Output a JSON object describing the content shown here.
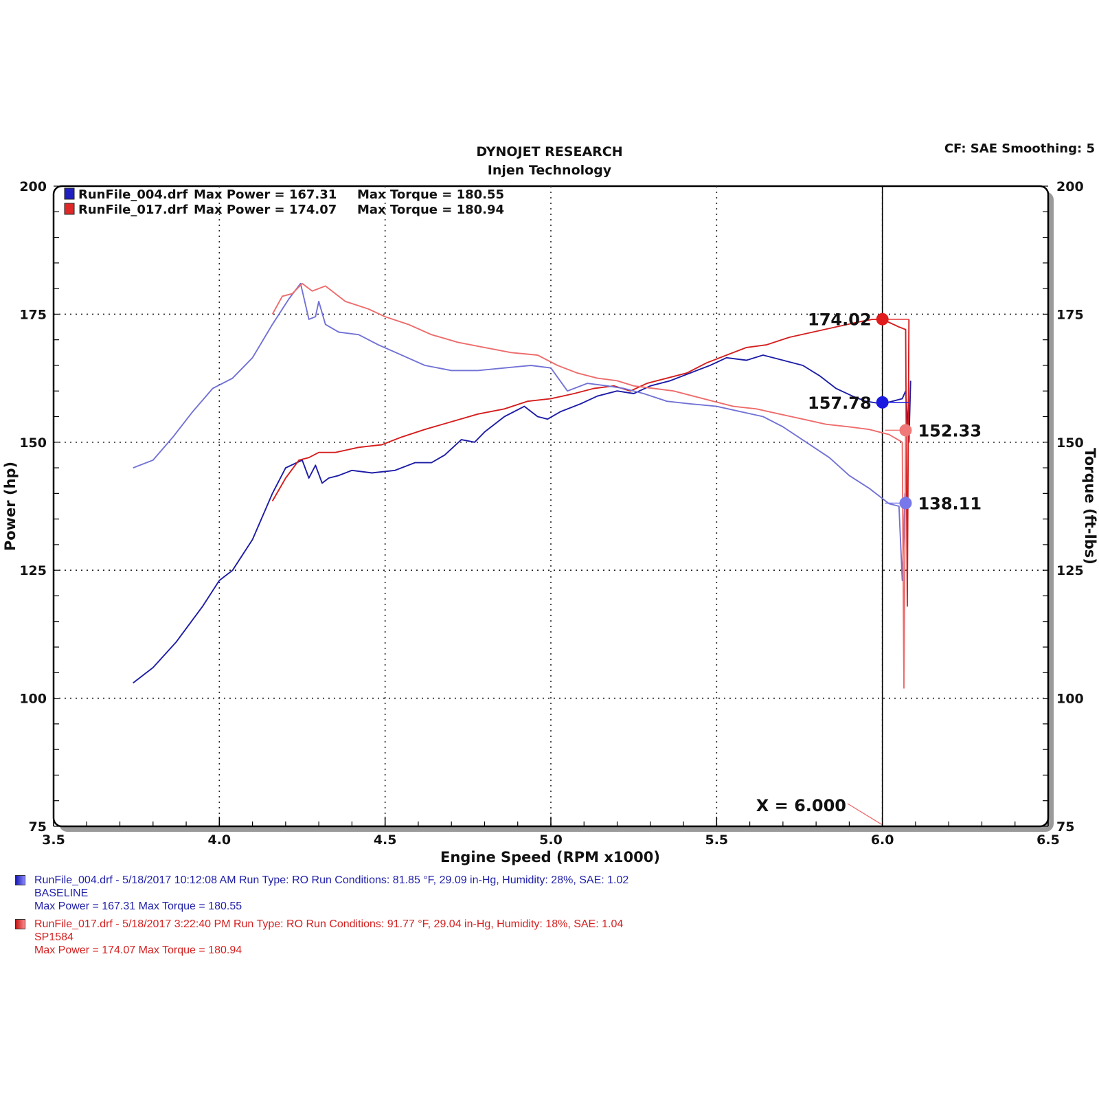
{
  "header": {
    "title": "DYNOJET RESEARCH",
    "subtitle": "Injen Technology",
    "settings": "CF: SAE  Smoothing: 5"
  },
  "legend": [
    {
      "file": "RunFile_004.drf",
      "max_power_label": "Max Power = 167.31",
      "max_torque_label": "Max Torque = 180.55",
      "color": "#1f1fa8"
    },
    {
      "file": "RunFile_017.drf",
      "max_power_label": "Max Power = 174.07",
      "max_torque_label": "Max Torque = 180.94",
      "color": "#d42020"
    }
  ],
  "runs": [
    {
      "line1": "RunFile_004.drf - 5/18/2017 10:12:08 AM  Run Type: RO  Run Conditions: 81.85 °F, 29.09 in-Hg,  Humidity:  28%, SAE: 1.02",
      "line2": "BASELINE",
      "line3": "Max Power = 167.31  Max Torque = 180.55",
      "color": "#1f1fa8"
    },
    {
      "line1": "RunFile_017.drf - 5/18/2017 3:22:40 PM  Run Type: RO  Run Conditions: 91.77 °F, 29.04 in-Hg,  Humidity:  18%, SAE: 1.04",
      "line2": "SP1584",
      "line3": "Max Power = 174.07  Max Torque = 180.94",
      "color": "#d42020"
    }
  ],
  "chart_data": {
    "type": "line",
    "xlabel": "Engine Speed (RPM x1000)",
    "ylabel": "Power (hp)",
    "y2label": "Torque (ft-lbs)",
    "xlim": [
      3.5,
      6.5
    ],
    "ylim": [
      75,
      200
    ],
    "y2lim": [
      75,
      200
    ],
    "x_ticks": [
      "3.5",
      "4.0",
      "4.5",
      "5.0",
      "5.5",
      "6.0",
      "6.5"
    ],
    "y_ticks": [
      "75",
      "100",
      "125",
      "150",
      "175",
      "200"
    ],
    "grid": "dotted",
    "legend_position": "top-left",
    "cursor": {
      "x": 6.0,
      "label": "X = 6.000"
    },
    "series": [
      {
        "name": "RunFile_004.drf",
        "measure": "power",
        "color": "#1c1ca6",
        "x": [
          3.74,
          3.8,
          3.87,
          3.95,
          4.0,
          4.04,
          4.1,
          4.16,
          4.2,
          4.25,
          4.27,
          4.29,
          4.31,
          4.33,
          4.36,
          4.4,
          4.46,
          4.53,
          4.59,
          4.64,
          4.68,
          4.73,
          4.77,
          4.8,
          4.86,
          4.92,
          4.96,
          4.99,
          5.03,
          5.09,
          5.14,
          5.2,
          5.25,
          5.3,
          5.36,
          5.42,
          5.48,
          5.53,
          5.59,
          5.64,
          5.7,
          5.76,
          5.81,
          5.86,
          5.91,
          5.95,
          6.0,
          6.06,
          6.07,
          6.08,
          6.085
        ],
        "y": [
          103.0,
          106.0,
          111.0,
          118.0,
          123.0,
          125.0,
          131.0,
          140.0,
          145.0,
          146.5,
          143.0,
          145.5,
          142.0,
          143.0,
          143.5,
          144.5,
          144.0,
          144.5,
          146.0,
          146.0,
          147.5,
          150.5,
          150.0,
          152.0,
          155.0,
          157.0,
          155.0,
          154.5,
          156.0,
          157.5,
          159.0,
          160.0,
          159.5,
          161.0,
          162.0,
          163.5,
          165.0,
          166.5,
          166.0,
          167.0,
          166.0,
          165.0,
          163.0,
          160.5,
          159.0,
          158.0,
          157.5,
          158.5,
          160.0,
          150.0,
          162.0
        ]
      },
      {
        "name": "RunFile_017.drf",
        "measure": "power",
        "color": "#d41e1e",
        "x": [
          4.16,
          4.2,
          4.24,
          4.27,
          4.3,
          4.35,
          4.42,
          4.49,
          4.55,
          4.62,
          4.7,
          4.78,
          4.86,
          4.93,
          5.0,
          5.07,
          5.13,
          5.19,
          5.24,
          5.29,
          5.35,
          5.41,
          5.47,
          5.53,
          5.59,
          5.65,
          5.72,
          5.79,
          5.86,
          5.93,
          5.97,
          6.0,
          6.05,
          6.07,
          6.075,
          6.08
        ],
        "y": [
          138.5,
          143.0,
          146.5,
          147.0,
          148.0,
          148.0,
          149.0,
          149.5,
          151.0,
          152.5,
          154.0,
          155.5,
          156.5,
          158.0,
          158.5,
          159.5,
          160.5,
          161.0,
          160.0,
          161.5,
          162.5,
          163.5,
          165.5,
          167.0,
          168.5,
          169.0,
          170.5,
          171.5,
          172.5,
          173.5,
          174.0,
          174.0,
          172.5,
          172.0,
          118.0,
          174.0
        ]
      },
      {
        "name": "RunFile_004.drf",
        "measure": "torque",
        "color": "#7272d6",
        "x": [
          3.74,
          3.8,
          3.86,
          3.92,
          3.98,
          4.04,
          4.1,
          4.16,
          4.21,
          4.245,
          4.27,
          4.29,
          4.3,
          4.32,
          4.36,
          4.42,
          4.48,
          4.55,
          4.62,
          4.7,
          4.78,
          4.86,
          4.94,
          5.0,
          5.05,
          5.11,
          5.17,
          5.22,
          5.28,
          5.35,
          5.42,
          5.5,
          5.57,
          5.64,
          5.7,
          5.77,
          5.84,
          5.9,
          5.96,
          6.02,
          6.05,
          6.06,
          6.068,
          6.075
        ],
        "y": [
          145.0,
          146.5,
          151.0,
          156.0,
          160.5,
          162.5,
          166.5,
          173.0,
          178.0,
          181.0,
          174.0,
          174.5,
          177.5,
          173.0,
          171.5,
          171.0,
          169.0,
          167.0,
          165.0,
          164.0,
          164.0,
          164.5,
          165.0,
          164.5,
          160.0,
          161.5,
          161.0,
          160.5,
          159.5,
          158.0,
          157.5,
          157.0,
          156.0,
          155.0,
          153.0,
          150.0,
          147.0,
          143.5,
          141.0,
          138.0,
          137.5,
          123.0,
          140.0,
          138.0
        ]
      },
      {
        "name": "RunFile_017.drf",
        "measure": "torque",
        "color": "#ee6c6c",
        "x": [
          4.16,
          4.19,
          4.22,
          4.25,
          4.28,
          4.32,
          4.38,
          4.45,
          4.5,
          4.57,
          4.64,
          4.72,
          4.8,
          4.88,
          4.96,
          5.02,
          5.08,
          5.14,
          5.2,
          5.25,
          5.31,
          5.37,
          5.43,
          5.49,
          5.55,
          5.62,
          5.69,
          5.76,
          5.83,
          5.9,
          5.96,
          6.02,
          6.06,
          6.065,
          6.07
        ],
        "y": [
          175.0,
          178.5,
          179.0,
          181.0,
          179.5,
          180.5,
          177.5,
          176.0,
          174.5,
          173.0,
          171.0,
          169.5,
          168.5,
          167.5,
          167.0,
          165.0,
          163.5,
          162.5,
          162.0,
          161.0,
          160.5,
          160.0,
          159.0,
          158.0,
          157.0,
          156.5,
          155.5,
          154.5,
          153.5,
          153.0,
          152.5,
          151.5,
          150.0,
          102.0,
          152.33
        ]
      }
    ],
    "markers": [
      {
        "label": "174.02",
        "value": 174.02,
        "x": 6.0,
        "color": "#e01c1c",
        "side": "left"
      },
      {
        "label": "157.78",
        "value": 157.78,
        "x": 6.0,
        "color": "#1a1ae0",
        "side": "left"
      },
      {
        "label": "152.33",
        "value": 152.33,
        "x": 6.07,
        "color": "#f07878",
        "side": "right"
      },
      {
        "label": "138.11",
        "value": 138.11,
        "x": 6.07,
        "color": "#7878ea",
        "side": "right"
      }
    ]
  }
}
